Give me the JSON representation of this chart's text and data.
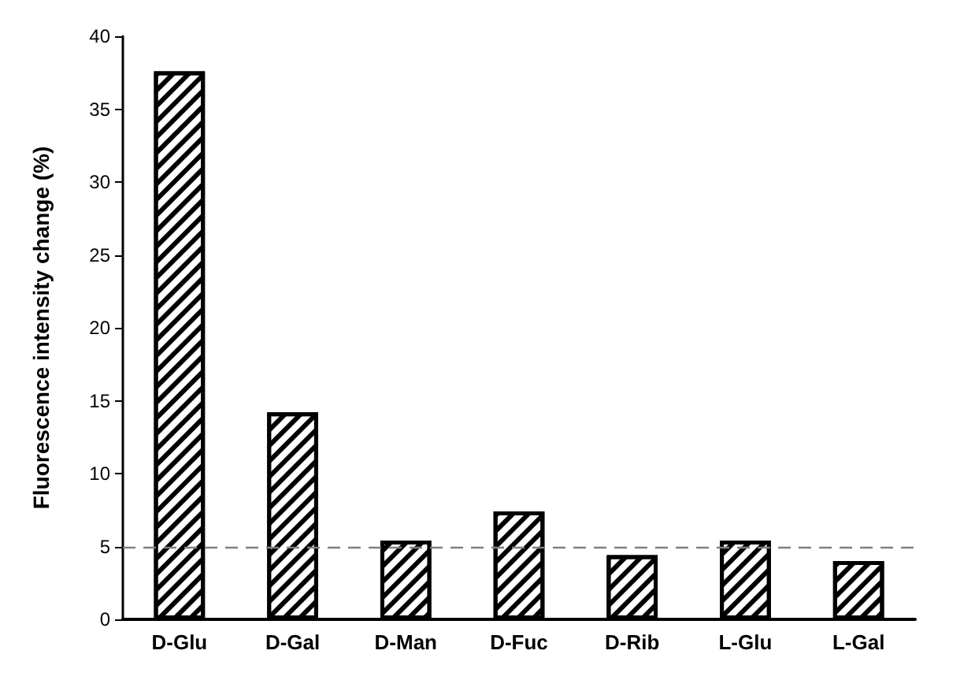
{
  "chart_data": {
    "type": "bar",
    "ylabel": "Fluorescence intensity change (%)",
    "categories": [
      "D-Glu",
      "D-Gal",
      "D-Man",
      "D-Fuc",
      "D-Rib",
      "L-Glu",
      "L-Gal"
    ],
    "values": [
      37.6,
      14.2,
      5.4,
      7.4,
      4.4,
      5.4,
      4.0
    ],
    "color": "#000000",
    "ylim": [
      0,
      40
    ],
    "yticks": [
      0,
      5,
      10,
      15,
      20,
      25,
      30,
      35,
      40
    ],
    "grid": false,
    "ref_lines": [
      {
        "axis": "y",
        "value": 5,
        "color": "#808080",
        "line_style": "dashed"
      }
    ]
  }
}
